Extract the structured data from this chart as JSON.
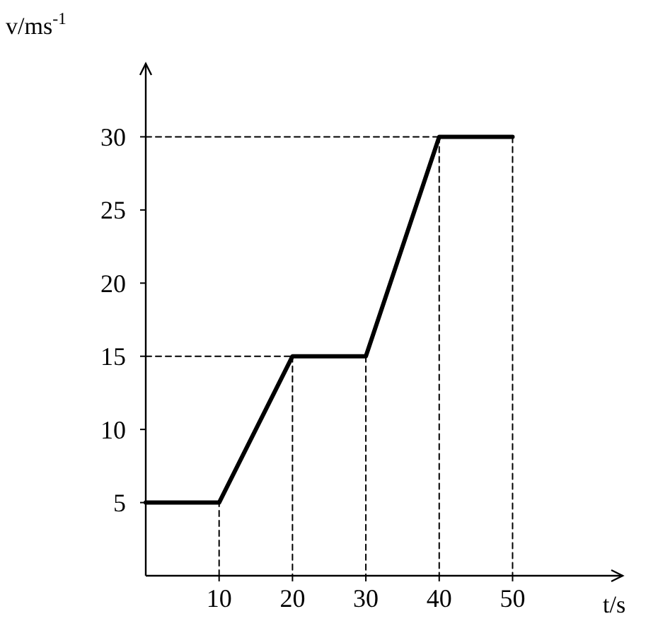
{
  "chart_data": {
    "type": "line",
    "xlabel": "t/s",
    "ylabel": "v/ms$^{-1}$",
    "xlim": [
      0,
      65
    ],
    "ylim": [
      0,
      35
    ],
    "xticks": [
      10,
      20,
      30,
      40,
      50
    ],
    "yticks": [
      5,
      10,
      15,
      20,
      25,
      30
    ],
    "grid": false,
    "marker": "none",
    "series": [
      {
        "color": "#000000",
        "line_style": "solid",
        "x": [
          0,
          10,
          20,
          30,
          40,
          50
        ],
        "values": [
          5,
          5,
          15,
          15,
          30,
          30
        ]
      },
      {
        "color": "#000000",
        "line_style": "dashed",
        "x": [
          10,
          10
        ],
        "values": [
          0,
          5
        ]
      },
      {
        "color": "#000000",
        "line_style": "dashed",
        "x": [
          0,
          20
        ],
        "values": [
          15,
          15
        ]
      },
      {
        "color": "#000000",
        "line_style": "dashed",
        "x": [
          20,
          20
        ],
        "values": [
          15,
          0
        ]
      },
      {
        "color": "#000000",
        "line_style": "dashed",
        "x": [
          30,
          30
        ],
        "values": [
          15,
          0
        ]
      },
      {
        "color": "#000000",
        "line_style": "dashed",
        "x": [
          0,
          40
        ],
        "values": [
          30,
          30
        ]
      },
      {
        "color": "#000000",
        "line_style": "dashed",
        "x": [
          40,
          40
        ],
        "values": [
          30,
          0
        ]
      },
      {
        "color": "#000000",
        "line_style": "dashed",
        "x": [
          50,
          50
        ],
        "values": [
          30,
          0
        ]
      }
    ]
  }
}
